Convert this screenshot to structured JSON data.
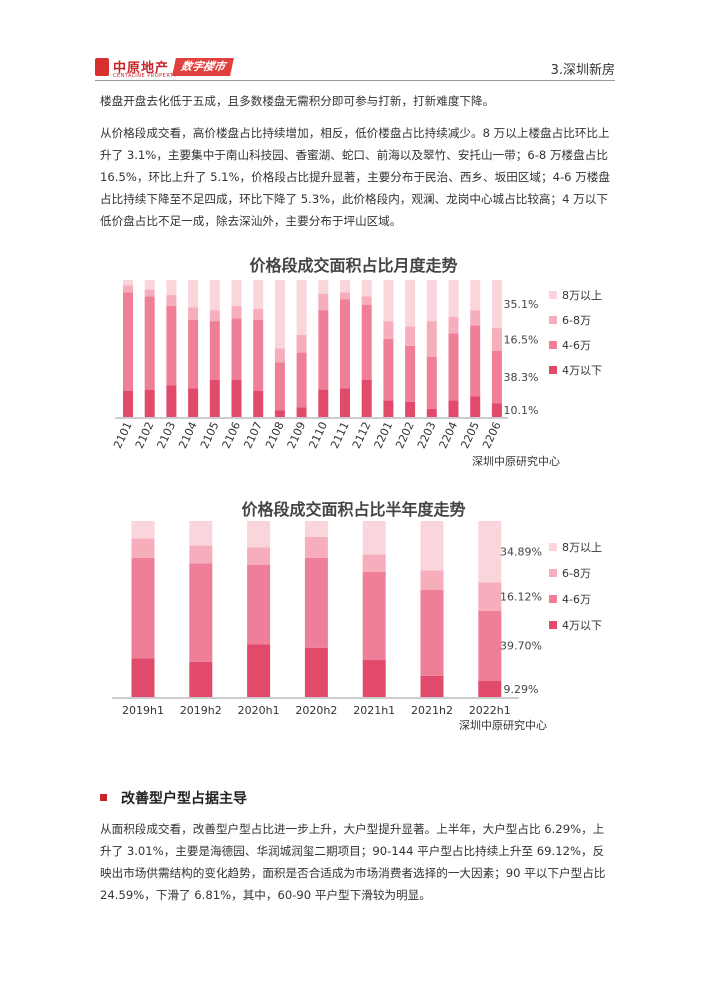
{
  "header": {
    "logo_text": "中原地产",
    "logo_sub": "CENTALINE PROPERTY",
    "tag": "数字楼市",
    "section": "3.深圳新房"
  },
  "paragraphs": {
    "p1": "楼盘开盘去化低于五成，且多数楼盘无需积分即可参与打新，打新难度下降。",
    "p2": "从价格段成交看，高价楼盘占比持续增加，相反，低价楼盘占比持续减少。8 万以上楼盘占比环比上升了 3.1%，主要集中于南山科技园、香蜜湖、蛇口、前海以及翠竹、安托山一带；6-8 万楼盘占比 16.5%，环比上升了 5.1%，价格段占比提升显著，主要分布于民治、西乡、坂田区域；4-6 万楼盘占比持续下降至不足四成，环比下降了 5.3%，此价格段内，观澜、龙岗中心城占比较高；4 万以下低价盘占比不足一成，除去深汕外，主要分布于坪山区域。",
    "section_heading": "改善型户型占据主导",
    "p3": "从面积段成交看，改善型户型占比进一步上升，大户型提升显著。上半年，大户型占比 6.29%，上升了 3.01%，主要是海德园、华润城润玺二期项目；90-144 平户型占比持续上升至 69.12%，反映出市场供需结构的变化趋势，面积是否合适成为市场消费者选择的一大因素；90 平以下户型占比 24.59%，下滑了 6.81%，其中，60-90 平户型下滑较为明显。"
  },
  "colors": {
    "s1": "#e24a6c",
    "s2": "#ef7f98",
    "s3": "#f6aebc",
    "s4": "#fbd5dc"
  },
  "chart_data": [
    {
      "type": "bar",
      "stacked": true,
      "title": "价格段成交面积占比月度走势",
      "source": "深圳中原研究中心",
      "categories": [
        "2101",
        "2102",
        "2103",
        "2104",
        "2105",
        "2106",
        "2107",
        "2108",
        "2109",
        "2110",
        "2111",
        "2112",
        "2201",
        "2202",
        "2203",
        "2204",
        "2205",
        "2206"
      ],
      "series": [
        {
          "name": "4万以下",
          "values": [
            19,
            20,
            23,
            21,
            27,
            27,
            19,
            5,
            7,
            20,
            21,
            27,
            12,
            11,
            6,
            12,
            15,
            10.1
          ]
        },
        {
          "name": "4-6万",
          "values": [
            72,
            68,
            58,
            50,
            43,
            45,
            52,
            35,
            40,
            58,
            65,
            55,
            45,
            41,
            38,
            49,
            52,
            38.3
          ]
        },
        {
          "name": "6-8万",
          "values": [
            5,
            5,
            8,
            9,
            8,
            9,
            8,
            10,
            13,
            12,
            5,
            6,
            13,
            14,
            26,
            12,
            11,
            16.5
          ]
        },
        {
          "name": "8万以上",
          "values": [
            4,
            7,
            11,
            20,
            22,
            19,
            21,
            50,
            40,
            10,
            9,
            12,
            30,
            34,
            30,
            27,
            22,
            35.1
          ]
        }
      ],
      "data_labels": [
        "10.1%",
        "38.3%",
        "16.5%",
        "35.1%"
      ],
      "ylim": [
        0,
        100
      ],
      "legend": "right"
    },
    {
      "type": "bar",
      "stacked": true,
      "title": "价格段成交面积占比半年度走势",
      "source": "深圳中原研究中心",
      "categories": [
        "2019h1",
        "2019h2",
        "2020h1",
        "2020h2",
        "2021h1",
        "2021h2",
        "2022h1"
      ],
      "series": [
        {
          "name": "4万以下",
          "values": [
            22,
            20,
            30,
            28,
            21,
            12,
            9.29
          ]
        },
        {
          "name": "4-6万",
          "values": [
            57,
            56,
            45,
            51,
            50,
            49,
            39.7
          ]
        },
        {
          "name": "6-8万",
          "values": [
            11,
            10,
            10,
            12,
            10,
            11,
            16.12
          ]
        },
        {
          "name": "8万以上",
          "values": [
            10,
            14,
            15,
            9,
            19,
            28,
            34.89
          ]
        }
      ],
      "data_labels": [
        "9.29%",
        "39.70%",
        "16.12%",
        "34.89%"
      ],
      "ylim": [
        0,
        100
      ],
      "legend": "right"
    }
  ]
}
